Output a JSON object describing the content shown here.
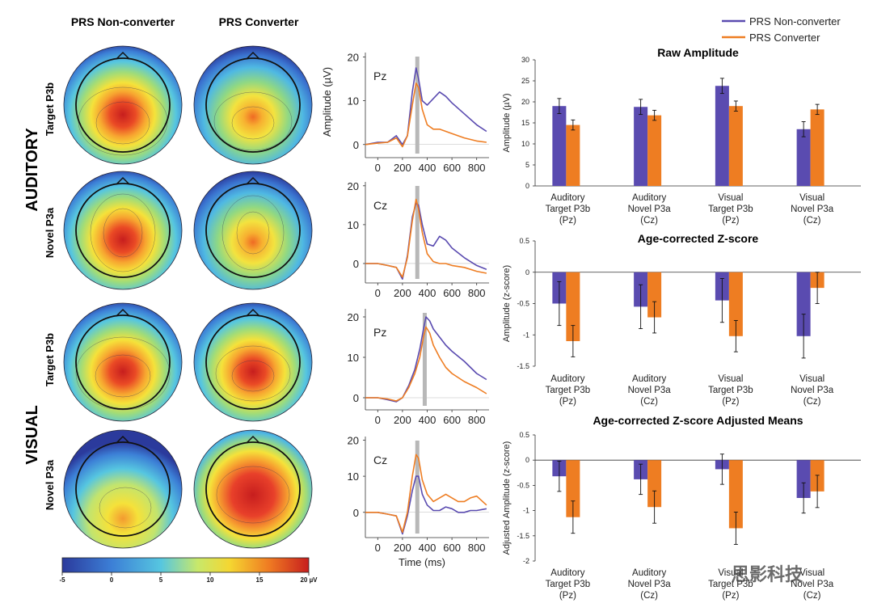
{
  "headers": {
    "col1": "PRS Non-converter",
    "col2": "PRS Converter",
    "group_auditory": "AUDITORY",
    "group_visual": "VISUAL",
    "rows": [
      "Target P3b",
      "Novel P3a",
      "Target P3b",
      "Novel P3a"
    ]
  },
  "colorbar": {
    "ticks": [
      "-5",
      "0",
      "5",
      "10",
      "15",
      "20 µV"
    ],
    "colors": [
      "#2b3a9c",
      "#3c7fd6",
      "#56c6e0",
      "#c8e86a",
      "#f5d631",
      "#ef7a22",
      "#c71e1e"
    ]
  },
  "legend": {
    "items": [
      {
        "label": "PRS Non-converter",
        "color": "#5a4bb0"
      },
      {
        "label": "PRS Converter",
        "color": "#ee7d22"
      }
    ]
  },
  "waveforms": {
    "ylabel": "Amplitude (µV)",
    "xlabel": "Time (ms)",
    "xticks": [
      "0",
      "200",
      "400",
      "600",
      "800"
    ],
    "yticks": [
      "0",
      "10",
      "20"
    ],
    "panels": [
      {
        "channel": "Pz",
        "marker_ms": 320
      },
      {
        "channel": "Cz",
        "marker_ms": 320
      },
      {
        "channel": "Pz",
        "marker_ms": 380
      },
      {
        "channel": "Cz",
        "marker_ms": 320
      }
    ]
  },
  "watermark": "思影科技",
  "chart_data": [
    {
      "type": "line",
      "channel": "Pz",
      "xlabel": "",
      "ylabel": "Amplitude (µV)",
      "xlim": [
        -100,
        900
      ],
      "ylim": [
        -3,
        21
      ],
      "series": [
        {
          "name": "PRS Non-converter",
          "x": [
            -100,
            0,
            80,
            150,
            200,
            240,
            280,
            310,
            330,
            360,
            400,
            450,
            500,
            550,
            600,
            700,
            800,
            880
          ],
          "values": [
            0,
            0.5,
            0.5,
            2,
            0,
            2,
            12,
            17.5,
            15,
            10,
            9,
            10.5,
            12,
            11,
            9.5,
            7,
            4.5,
            3
          ]
        },
        {
          "name": "PRS Converter",
          "x": [
            -100,
            0,
            80,
            150,
            200,
            240,
            280,
            310,
            330,
            360,
            400,
            450,
            500,
            550,
            600,
            700,
            800,
            880
          ],
          "values": [
            0,
            0.3,
            0.5,
            1.5,
            -0.5,
            2,
            9,
            14,
            13,
            8,
            4.5,
            3.5,
            3.5,
            3,
            2.5,
            1.5,
            0.8,
            0.5
          ]
        }
      ]
    },
    {
      "type": "line",
      "channel": "Cz",
      "xlabel": "",
      "ylabel": "Amplitude (µV)",
      "xlim": [
        -100,
        900
      ],
      "ylim": [
        -5,
        21
      ],
      "series": [
        {
          "name": "PRS Non-converter",
          "x": [
            -100,
            0,
            80,
            150,
            200,
            240,
            280,
            310,
            330,
            360,
            400,
            450,
            500,
            550,
            600,
            700,
            800,
            880
          ],
          "values": [
            0,
            0,
            -0.5,
            -1,
            -4,
            2,
            12,
            15.5,
            15,
            10,
            5,
            4.5,
            7,
            6,
            4,
            1.5,
            -0.5,
            -1.5
          ]
        },
        {
          "name": "PRS Converter",
          "x": [
            -100,
            0,
            80,
            150,
            200,
            240,
            280,
            310,
            330,
            360,
            400,
            450,
            500,
            550,
            600,
            700,
            800,
            880
          ],
          "values": [
            0,
            0,
            -0.5,
            -1,
            -3.5,
            1.5,
            11,
            16.5,
            14,
            8,
            2.5,
            0.5,
            0,
            0,
            -0.5,
            -1,
            -2,
            -2.5
          ]
        }
      ]
    },
    {
      "type": "line",
      "channel": "Pz",
      "xlabel": "",
      "ylabel": "Amplitude (µV)",
      "xlim": [
        -100,
        900
      ],
      "ylim": [
        -3,
        22
      ],
      "series": [
        {
          "name": "PRS Non-converter",
          "x": [
            -100,
            0,
            80,
            150,
            200,
            250,
            300,
            340,
            370,
            390,
            420,
            450,
            500,
            550,
            600,
            700,
            800,
            880
          ],
          "values": [
            0,
            0,
            -0.5,
            -1,
            0,
            3,
            7,
            12,
            17,
            20,
            19,
            17,
            15,
            13,
            11.5,
            9,
            6,
            4.5
          ]
        },
        {
          "name": "PRS Converter",
          "x": [
            -100,
            0,
            80,
            150,
            200,
            250,
            300,
            340,
            370,
            390,
            420,
            450,
            500,
            550,
            600,
            700,
            800,
            880
          ],
          "values": [
            0,
            0,
            -0.3,
            -0.8,
            0,
            2.5,
            6,
            10,
            15,
            17.5,
            16,
            13,
            10,
            7.5,
            6,
            4,
            2.5,
            1
          ]
        }
      ]
    },
    {
      "type": "line",
      "channel": "Cz",
      "xlabel": "Time (ms)",
      "ylabel": "Amplitude (µV)",
      "xlim": [
        -100,
        900
      ],
      "ylim": [
        -7,
        21
      ],
      "series": [
        {
          "name": "PRS Non-converter",
          "x": [
            -100,
            0,
            80,
            150,
            200,
            240,
            280,
            310,
            330,
            360,
            400,
            450,
            500,
            550,
            600,
            650,
            700,
            750,
            800,
            880
          ],
          "values": [
            0,
            0,
            -0.5,
            -1,
            -6,
            -1,
            6,
            10,
            10,
            5,
            2,
            0.5,
            0.5,
            1.5,
            1,
            0,
            0,
            0.5,
            0.5,
            1
          ]
        },
        {
          "name": "PRS Converter",
          "x": [
            -100,
            0,
            80,
            150,
            200,
            240,
            280,
            310,
            330,
            360,
            400,
            450,
            500,
            550,
            600,
            650,
            700,
            750,
            800,
            880
          ],
          "values": [
            0,
            0,
            -0.5,
            -1,
            -5.5,
            0,
            10,
            16,
            15,
            9,
            5,
            3,
            4,
            5,
            4,
            3,
            3,
            4,
            4.5,
            2
          ]
        }
      ]
    },
    {
      "type": "bar",
      "title": "Raw Amplitude",
      "ylabel": "Amplitude (µV)",
      "ylim": [
        0,
        30
      ],
      "yticks": [
        "0",
        "5",
        "10",
        "15",
        "20",
        "25",
        "30"
      ],
      "categories": [
        [
          "Auditory",
          "Target P3b",
          "(Pz)"
        ],
        [
          "Auditory",
          "Novel P3a",
          "(Cz)"
        ],
        [
          "Visual",
          "Target P3b",
          "(Pz)"
        ],
        [
          "Visual",
          "Novel P3a",
          "(Cz)"
        ]
      ],
      "series": [
        {
          "name": "PRS Non-converter",
          "values": [
            19,
            18.8,
            23.8,
            13.5
          ],
          "errors": [
            1.8,
            1.8,
            1.8,
            1.8
          ]
        },
        {
          "name": "PRS Converter",
          "values": [
            14.5,
            16.8,
            19,
            18.2
          ],
          "errors": [
            1.2,
            1.2,
            1.2,
            1.2
          ]
        }
      ]
    },
    {
      "type": "bar",
      "title": "Age-corrected Z-score",
      "ylabel": "Amplitude (z-score)",
      "ylim": [
        -1.5,
        0.5
      ],
      "yticks": [
        "0.5",
        "0",
        "-0.5",
        "-1",
        "-1.5"
      ],
      "categories": [
        [
          "Auditory",
          "Target P3b",
          "(Pz)"
        ],
        [
          "Auditory",
          "Novel P3a",
          "(Cz)"
        ],
        [
          "Visual",
          "Target P3b",
          "(Pz)"
        ],
        [
          "Visual",
          "Novel P3a",
          "(Cz)"
        ]
      ],
      "series": [
        {
          "name": "PRS Non-converter",
          "values": [
            -0.5,
            -0.55,
            -0.45,
            -1.02
          ],
          "errors": [
            0.35,
            0.35,
            0.35,
            0.35
          ]
        },
        {
          "name": "PRS Converter",
          "values": [
            -1.1,
            -0.72,
            -1.02,
            -0.25
          ],
          "errors": [
            0.25,
            0.25,
            0.25,
            0.25
          ]
        }
      ]
    },
    {
      "type": "bar",
      "title": "Age-corrected Z-score Adjusted Means",
      "ylabel": "Adjusted Amplitude (z-score)",
      "ylim": [
        -2,
        0.5
      ],
      "yticks": [
        "0.5",
        "0",
        "-0.5",
        "-1",
        "-1.5",
        "-2"
      ],
      "categories": [
        [
          "Auditory",
          "Target P3b",
          "(Pz)"
        ],
        [
          "Auditory",
          "Novel P3a",
          "(Cz)"
        ],
        [
          "Visual",
          "Target P3b",
          "(Pz)"
        ],
        [
          "Visual",
          "Novel P3a",
          "(Cz)"
        ]
      ],
      "series": [
        {
          "name": "PRS Non-converter",
          "values": [
            -0.32,
            -0.38,
            -0.18,
            -0.75
          ],
          "errors": [
            0.3,
            0.3,
            0.3,
            0.3
          ]
        },
        {
          "name": "PRS Converter",
          "values": [
            -1.13,
            -0.93,
            -1.35,
            -0.62
          ],
          "errors": [
            0.32,
            0.32,
            0.32,
            0.32
          ]
        }
      ]
    }
  ]
}
